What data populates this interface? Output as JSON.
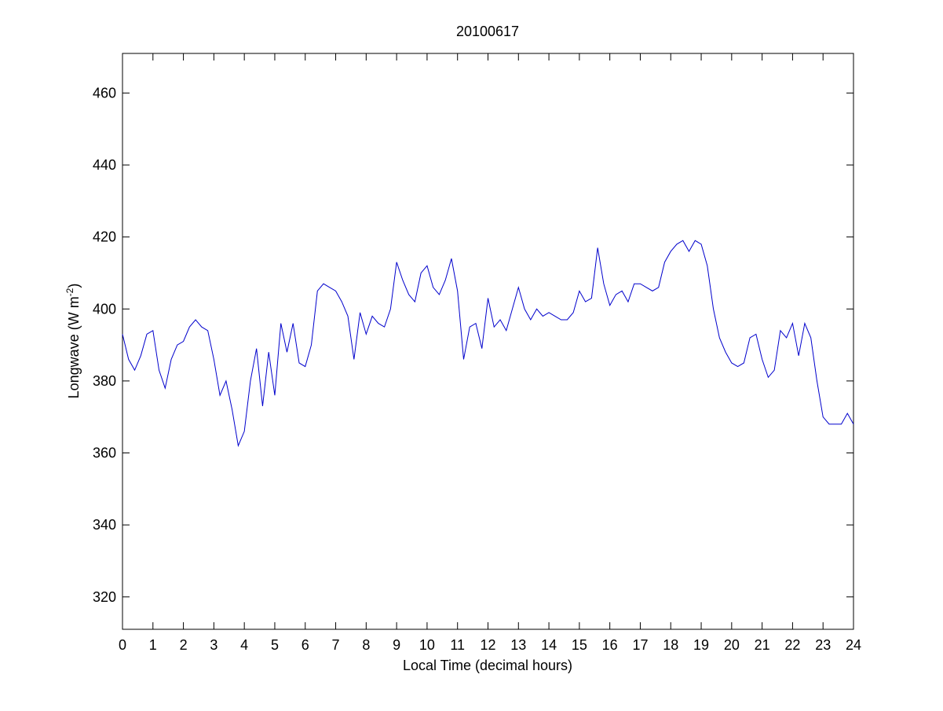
{
  "chart_data": {
    "type": "line",
    "title": "20100617",
    "xlabel": "Local Time (decimal hours)",
    "ylabel": [
      "Longwave (W m",
      "-2",
      ")"
    ],
    "xlim": [
      0,
      24
    ],
    "ylim": [
      311,
      471
    ],
    "xticks": [
      0,
      1,
      2,
      3,
      4,
      5,
      6,
      7,
      8,
      9,
      10,
      11,
      12,
      13,
      14,
      15,
      16,
      17,
      18,
      19,
      20,
      21,
      22,
      23,
      24
    ],
    "yticks": [
      320,
      340,
      360,
      380,
      400,
      420,
      440,
      460
    ],
    "grid": false,
    "series": [
      {
        "color": "#0000cc",
        "x": [
          0,
          0.2,
          0.4,
          0.6,
          0.8,
          1,
          1.2,
          1.4,
          1.6,
          1.8,
          2,
          2.2,
          2.4,
          2.6,
          2.8,
          3,
          3.2,
          3.4,
          3.6,
          3.8,
          4,
          4.2,
          4.4,
          4.6,
          4.8,
          5,
          5.2,
          5.4,
          5.6,
          5.8,
          6,
          6.2,
          6.4,
          6.6,
          6.8,
          7,
          7.2,
          7.4,
          7.6,
          7.8,
          8,
          8.2,
          8.4,
          8.6,
          8.8,
          9,
          9.2,
          9.4,
          9.6,
          9.8,
          10,
          10.2,
          10.4,
          10.6,
          10.8,
          11,
          11.2,
          11.4,
          11.6,
          11.8,
          12,
          12.2,
          12.4,
          12.6,
          12.8,
          13,
          13.2,
          13.4,
          13.6,
          13.8,
          14,
          14.2,
          14.4,
          14.6,
          14.8,
          15,
          15.2,
          15.4,
          15.6,
          15.8,
          16,
          16.2,
          16.4,
          16.6,
          16.8,
          17,
          17.2,
          17.4,
          17.6,
          17.8,
          18,
          18.2,
          18.4,
          18.6,
          18.8,
          19,
          19.2,
          19.4,
          19.6,
          19.8,
          20,
          20.2,
          20.4,
          20.6,
          20.8,
          21,
          21.2,
          21.4,
          21.6,
          21.8,
          22,
          22.2,
          22.4,
          22.6,
          22.8,
          23,
          23.2,
          23.4,
          23.6,
          23.8,
          24
        ],
        "values": [
          393,
          386,
          383,
          387,
          393,
          394,
          383,
          378,
          386,
          390,
          391,
          395,
          397,
          395,
          394,
          386,
          376,
          380,
          372,
          362,
          366,
          380,
          389,
          373,
          388,
          376,
          396,
          388,
          396,
          385,
          384,
          390,
          405,
          407,
          406,
          405,
          402,
          398,
          386,
          399,
          393,
          398,
          396,
          395,
          400,
          413,
          408,
          404,
          402,
          410,
          412,
          406,
          404,
          408,
          414,
          405,
          386,
          395,
          396,
          389,
          403,
          395,
          397,
          394,
          400,
          406,
          400,
          397,
          400,
          398,
          399,
          398,
          397,
          397,
          399,
          405,
          402,
          403,
          417,
          407,
          401,
          404,
          405,
          402,
          407,
          407,
          406,
          405,
          406,
          413,
          416,
          418,
          419,
          416,
          419,
          418,
          412,
          400,
          392,
          388,
          385,
          384,
          385,
          392,
          393,
          386,
          381,
          383,
          394,
          392,
          396,
          387,
          396,
          392,
          380,
          370,
          368,
          368,
          368,
          371,
          368
        ]
      }
    ]
  }
}
